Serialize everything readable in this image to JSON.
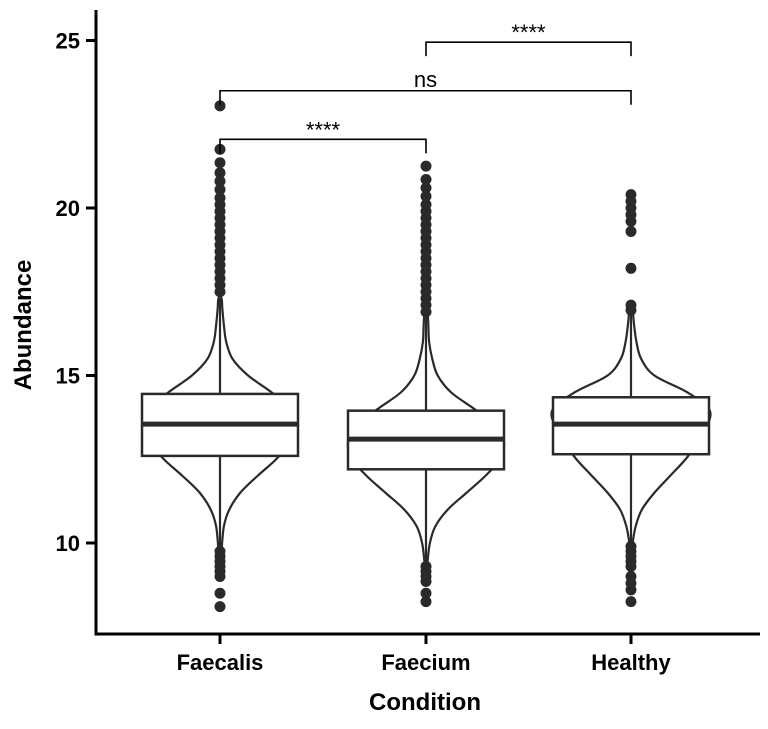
{
  "chart_data": {
    "type": "violin",
    "xlabel": "Condition",
    "ylabel": "Abundance",
    "ylim": [
      7.3,
      25.9
    ],
    "yticks": [
      10,
      15,
      20,
      25
    ],
    "categories": [
      "Faecalis",
      "Faecium",
      "Healthy"
    ],
    "groups": [
      {
        "name": "Faecalis",
        "median": 13.55,
        "q1": 12.6,
        "q3": 14.45,
        "whisker_low": 9.8,
        "whisker_high": 17.3,
        "violin": [
          [
            9.8,
            0.02
          ],
          [
            10.5,
            0.05
          ],
          [
            11.0,
            0.12
          ],
          [
            11.5,
            0.26
          ],
          [
            12.0,
            0.48
          ],
          [
            12.5,
            0.72
          ],
          [
            13.0,
            0.9
          ],
          [
            13.5,
            1.0
          ],
          [
            14.0,
            0.92
          ],
          [
            14.5,
            0.66
          ],
          [
            15.0,
            0.36
          ],
          [
            15.5,
            0.16
          ],
          [
            16.0,
            0.08
          ],
          [
            16.5,
            0.05
          ],
          [
            17.0,
            0.03
          ],
          [
            17.3,
            0.02
          ]
        ],
        "outliers": [
          23.05,
          21.75,
          21.35,
          21.05,
          20.8,
          20.55,
          20.3,
          20.1,
          19.9,
          19.7,
          19.5,
          19.3,
          19.1,
          18.9,
          18.7,
          18.5,
          18.3,
          18.1,
          17.9,
          17.7,
          17.5,
          9.75,
          9.6,
          9.45,
          9.3,
          9.15,
          9.0,
          8.5,
          8.1
        ]
      },
      {
        "name": "Faecium",
        "median": 13.1,
        "q1": 12.2,
        "q3": 13.95,
        "whisker_low": 9.45,
        "whisker_high": 16.8,
        "violin": [
          [
            9.45,
            0.02
          ],
          [
            10.0,
            0.05
          ],
          [
            10.5,
            0.12
          ],
          [
            11.0,
            0.28
          ],
          [
            11.5,
            0.52
          ],
          [
            12.0,
            0.76
          ],
          [
            12.5,
            0.95
          ],
          [
            13.0,
            1.0
          ],
          [
            13.5,
            0.9
          ],
          [
            14.0,
            0.62
          ],
          [
            14.5,
            0.32
          ],
          [
            15.0,
            0.15
          ],
          [
            15.5,
            0.08
          ],
          [
            16.0,
            0.04
          ],
          [
            16.5,
            0.03
          ],
          [
            16.8,
            0.02
          ]
        ],
        "outliers": [
          21.25,
          20.85,
          20.6,
          20.35,
          20.1,
          19.9,
          19.7,
          19.5,
          19.3,
          19.1,
          18.9,
          18.7,
          18.5,
          18.3,
          18.1,
          17.9,
          17.7,
          17.5,
          17.3,
          17.1,
          16.9,
          9.3,
          9.15,
          9.0,
          8.85,
          8.5,
          8.25
        ]
      },
      {
        "name": "Healthy",
        "median": 13.55,
        "q1": 12.65,
        "q3": 14.35,
        "whisker_low": 10.0,
        "whisker_high": 16.9,
        "violin": [
          [
            10.0,
            0.02
          ],
          [
            10.5,
            0.06
          ],
          [
            11.0,
            0.14
          ],
          [
            11.5,
            0.3
          ],
          [
            12.0,
            0.5
          ],
          [
            12.5,
            0.7
          ],
          [
            13.0,
            0.86
          ],
          [
            13.5,
            0.98
          ],
          [
            14.0,
            1.0
          ],
          [
            14.5,
            0.72
          ],
          [
            15.0,
            0.3
          ],
          [
            15.5,
            0.13
          ],
          [
            16.0,
            0.07
          ],
          [
            16.5,
            0.04
          ],
          [
            16.9,
            0.02
          ]
        ],
        "outliers": [
          20.4,
          20.2,
          20.0,
          19.8,
          19.6,
          19.3,
          18.2,
          17.1,
          16.95,
          9.9,
          9.75,
          9.6,
          9.45,
          9.3,
          9.0,
          8.8,
          8.6,
          8.25
        ]
      }
    ],
    "comparisons": [
      {
        "from": "Faecium",
        "to": "Healthy",
        "y": 24.95,
        "label": "****"
      },
      {
        "from": "Faecalis",
        "to": "Healthy",
        "y": 23.5,
        "label": "ns"
      },
      {
        "from": "Faecalis",
        "to": "Faecium",
        "y": 22.05,
        "label": "****"
      }
    ],
    "grid": false,
    "legend": "none"
  }
}
